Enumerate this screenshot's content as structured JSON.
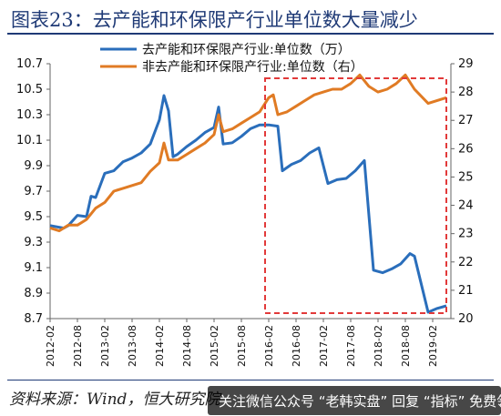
{
  "header": {
    "title": "图表23：去产能和环保限产行业单位数大量减少"
  },
  "footer": {
    "source": "资料来源：Wind，恒大研究院",
    "overlay_text": "关注微信公众号 “老韩实盘” 回复 “指标” 免费领"
  },
  "colors": {
    "blue": "#2a6ebb",
    "orange": "#e07b24",
    "highlight": "#e23a3a"
  },
  "chart_data": {
    "type": "line",
    "x_labels": [
      "2012-02",
      "2012-08",
      "2013-02",
      "2013-08",
      "2014-02",
      "2014-08",
      "2015-02",
      "2015-08",
      "2016-02",
      "2016-08",
      "2017-02",
      "2017-08",
      "2018-02",
      "2018-08",
      "2019-02"
    ],
    "y_left": {
      "min": 8.7,
      "max": 10.7,
      "ticks": [
        "10.7",
        "10.5",
        "10.3",
        "10.1",
        "9.9",
        "9.7",
        "9.5",
        "9.3",
        "9.1",
        "8.9",
        "8.7"
      ]
    },
    "y_right": {
      "min": 20,
      "max": 29,
      "ticks": [
        "29",
        "28",
        "27",
        "26",
        "25",
        "24",
        "23",
        "22",
        "21",
        "20"
      ]
    },
    "series": [
      {
        "name": "去产能和环保限产行业:单位数（万）",
        "axis": "left",
        "color": "#2a6ebb",
        "values": [
          [
            "2012-02",
            9.43
          ],
          [
            "2012-05",
            9.41
          ],
          [
            "2012-06",
            9.43
          ],
          [
            "2012-08",
            9.51
          ],
          [
            "2012-10",
            9.5
          ],
          [
            "2012-11",
            9.66
          ],
          [
            "2012-12",
            9.65
          ],
          [
            "2013-02",
            9.84
          ],
          [
            "2013-04",
            9.86
          ],
          [
            "2013-06",
            9.93
          ],
          [
            "2013-08",
            9.96
          ],
          [
            "2013-10",
            10.0
          ],
          [
            "2013-12",
            10.07
          ],
          [
            "2014-02",
            10.26
          ],
          [
            "2014-03",
            10.45
          ],
          [
            "2014-04",
            10.33
          ],
          [
            "2014-05",
            9.97
          ],
          [
            "2014-06",
            9.99
          ],
          [
            "2014-08",
            10.05
          ],
          [
            "2014-10",
            10.1
          ],
          [
            "2014-12",
            10.16
          ],
          [
            "2015-02",
            10.2
          ],
          [
            "2015-03",
            10.36
          ],
          [
            "2015-04",
            10.07
          ],
          [
            "2015-06",
            10.08
          ],
          [
            "2015-08",
            10.13
          ],
          [
            "2015-10",
            10.19
          ],
          [
            "2015-12",
            10.22
          ],
          [
            "2016-02",
            10.22
          ],
          [
            "2016-04",
            10.21
          ],
          [
            "2016-05",
            9.86
          ],
          [
            "2016-07",
            9.91
          ],
          [
            "2016-09",
            9.94
          ],
          [
            "2016-11",
            10.0
          ],
          [
            "2017-01",
            10.04
          ],
          [
            "2017-03",
            9.76
          ],
          [
            "2017-05",
            9.79
          ],
          [
            "2017-07",
            9.8
          ],
          [
            "2017-09",
            9.86
          ],
          [
            "2017-11",
            9.94
          ],
          [
            "2018-01",
            9.08
          ],
          [
            "2018-03",
            9.06
          ],
          [
            "2018-05",
            9.09
          ],
          [
            "2018-07",
            9.13
          ],
          [
            "2018-09",
            9.21
          ],
          [
            "2018-10",
            9.19
          ],
          [
            "2019-01",
            8.75
          ],
          [
            "2019-03",
            8.78
          ],
          [
            "2019-05",
            8.8
          ]
        ]
      },
      {
        "name": "非去产能和环保限产行业:单位数（右）",
        "axis": "right",
        "color": "#e07b24",
        "values": [
          [
            "2012-02",
            23.2
          ],
          [
            "2012-04",
            23.1
          ],
          [
            "2012-06",
            23.3
          ],
          [
            "2012-08",
            23.3
          ],
          [
            "2012-10",
            23.5
          ],
          [
            "2012-12",
            23.9
          ],
          [
            "2013-02",
            24.1
          ],
          [
            "2013-04",
            24.5
          ],
          [
            "2013-06",
            24.6
          ],
          [
            "2013-08",
            24.7
          ],
          [
            "2013-10",
            24.8
          ],
          [
            "2013-12",
            25.2
          ],
          [
            "2014-02",
            25.5
          ],
          [
            "2014-03",
            26.2
          ],
          [
            "2014-04",
            25.6
          ],
          [
            "2014-06",
            25.6
          ],
          [
            "2014-08",
            25.8
          ],
          [
            "2014-10",
            26.0
          ],
          [
            "2014-12",
            26.2
          ],
          [
            "2015-02",
            26.5
          ],
          [
            "2015-03",
            27.2
          ],
          [
            "2015-04",
            26.6
          ],
          [
            "2015-06",
            26.7
          ],
          [
            "2015-08",
            26.9
          ],
          [
            "2015-10",
            27.1
          ],
          [
            "2015-12",
            27.3
          ],
          [
            "2016-02",
            27.8
          ],
          [
            "2016-03",
            27.9
          ],
          [
            "2016-04",
            27.2
          ],
          [
            "2016-06",
            27.3
          ],
          [
            "2016-08",
            27.5
          ],
          [
            "2016-10",
            27.7
          ],
          [
            "2016-12",
            27.9
          ],
          [
            "2017-02",
            28.0
          ],
          [
            "2017-04",
            28.1
          ],
          [
            "2017-06",
            28.1
          ],
          [
            "2017-08",
            28.3
          ],
          [
            "2017-10",
            28.6
          ],
          [
            "2017-12",
            28.2
          ],
          [
            "2018-02",
            28.0
          ],
          [
            "2018-04",
            28.1
          ],
          [
            "2018-06",
            28.3
          ],
          [
            "2018-08",
            28.6
          ],
          [
            "2018-10",
            28.1
          ],
          [
            "2019-01",
            27.6
          ],
          [
            "2019-03",
            27.7
          ],
          [
            "2019-05",
            27.8
          ]
        ]
      }
    ],
    "highlight": {
      "from": "2016-02",
      "to": "2019-03"
    },
    "grid": false,
    "legend_position": "top-left"
  }
}
